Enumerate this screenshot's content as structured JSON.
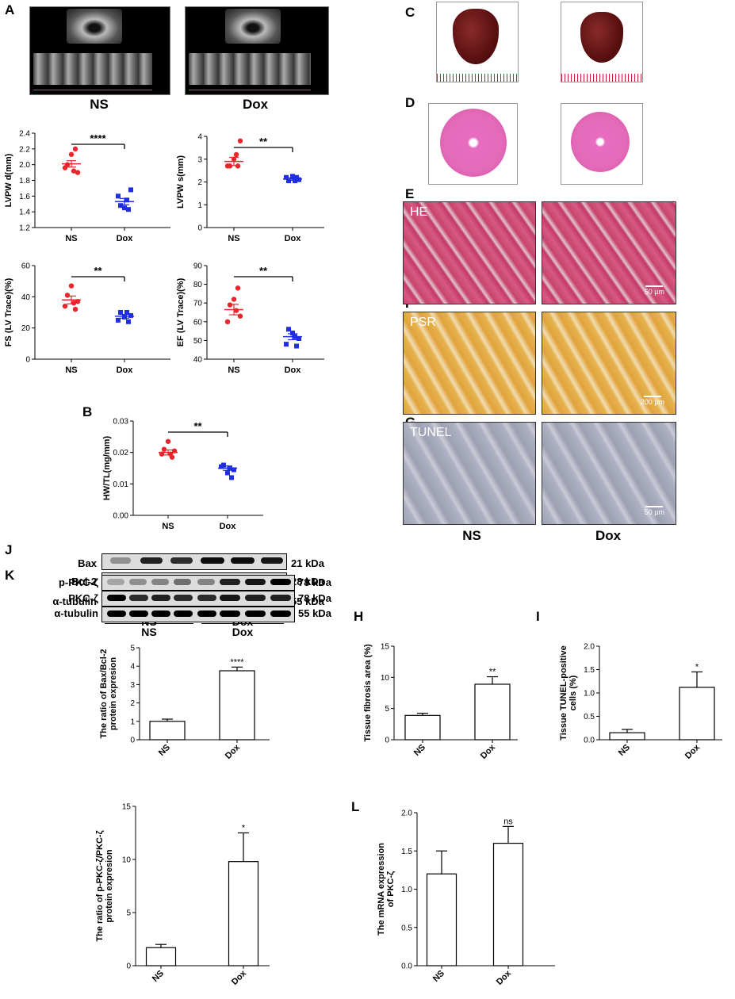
{
  "panels": {
    "A": "A",
    "B": "B",
    "C": "C",
    "D": "D",
    "E": "E",
    "F": "F",
    "G": "G",
    "H": "H",
    "I": "I",
    "J": "J",
    "K": "K",
    "L": "L"
  },
  "groups": {
    "ns": "NS",
    "dox": "Dox"
  },
  "histology": {
    "he": "HE",
    "psr": "PSR",
    "tunel": "TUNEL",
    "scale_50": "50 µm",
    "scale_200": "200 µm"
  },
  "blots": {
    "J": {
      "rows": [
        "Bax",
        "Bcl-2",
        "α-tubulin"
      ],
      "kda": [
        "21 kDa",
        "28 kDa",
        "55 kDa"
      ],
      "groups": [
        "NS",
        "Dox"
      ]
    },
    "K": {
      "rows": [
        "p-PKC-ζ",
        "PKC-ζ",
        "α-tubulin"
      ],
      "kda": [
        "78 kDa",
        "78 kDa",
        "55 kDa"
      ],
      "groups": [
        "NS",
        "Dox"
      ]
    }
  },
  "colors": {
    "ns": "#e8262b",
    "dox": "#1f2ee0"
  },
  "chart_data": [
    {
      "id": "A1",
      "type": "scatter",
      "categories": [
        "NS",
        "Dox"
      ],
      "ylabel": "LVPW d(mm)",
      "ylim": [
        1.2,
        2.4
      ],
      "yticks": [
        "1.2",
        "1.4",
        "1.6",
        "1.8",
        "2.0",
        "2.2",
        "2.4"
      ],
      "series": [
        {
          "values": [
            1.96,
            1.9,
            2.0,
            2.13,
            2.2,
            1.92
          ]
        },
        {
          "values": [
            1.6,
            1.68,
            1.48,
            1.45,
            1.43,
            1.55
          ]
        }
      ],
      "means": [
        2.01,
        1.53
      ],
      "sems": [
        0.04,
        0.04
      ],
      "sig": "****"
    },
    {
      "id": "A2",
      "type": "scatter",
      "categories": [
        "NS",
        "Dox"
      ],
      "ylabel": "LVPW s(mm)",
      "ylim": [
        0,
        4
      ],
      "yticks": [
        "0",
        "1",
        "2",
        "3",
        "4"
      ],
      "series": [
        {
          "values": [
            2.7,
            3.8,
            2.7,
            3.0,
            2.7,
            3.2
          ]
        },
        {
          "values": [
            2.2,
            2.1,
            2.05,
            2.25,
            2.2,
            2.05
          ]
        }
      ],
      "means": [
        2.9,
        2.13
      ],
      "sems": [
        0.18,
        0.06
      ],
      "sig": "**"
    },
    {
      "id": "A3",
      "type": "scatter",
      "categories": [
        "NS",
        "Dox"
      ],
      "ylabel": "FS (LV Trace)(%)",
      "ylim": [
        0,
        60
      ],
      "yticks": [
        "0",
        "20",
        "40",
        "60"
      ],
      "series": [
        {
          "values": [
            34,
            37,
            41,
            47,
            32,
            36
          ]
        },
        {
          "values": [
            25,
            28,
            30,
            27,
            24,
            30
          ]
        }
      ],
      "means": [
        38,
        27.5
      ],
      "sems": [
        2.5,
        1.2
      ],
      "sig": "**"
    },
    {
      "id": "A4",
      "type": "scatter",
      "categories": [
        "NS",
        "Dox"
      ],
      "ylabel": "EF (LV Trace)(%)",
      "ylim": [
        40,
        90
      ],
      "yticks": [
        "40",
        "50",
        "60",
        "70",
        "80",
        "90"
      ],
      "series": [
        {
          "values": [
            60,
            63,
            69,
            72,
            78,
            66
          ]
        },
        {
          "values": [
            48,
            51,
            56,
            54,
            47,
            52
          ]
        }
      ],
      "means": [
        66.5,
        52
      ],
      "sems": [
        2.8,
        1.6
      ],
      "sig": "**"
    },
    {
      "id": "B",
      "type": "scatter",
      "categories": [
        "NS",
        "Dox"
      ],
      "ylabel": "HW/TL(mg/mm)",
      "ylim": [
        0,
        0.03
      ],
      "yticks": [
        "0.00",
        "0.01",
        "0.02",
        "0.03"
      ],
      "series": [
        {
          "values": [
            0.0195,
            0.0205,
            0.021,
            0.0235,
            0.0185,
            0.0195
          ]
        },
        {
          "values": [
            0.0155,
            0.0145,
            0.016,
            0.0135,
            0.012,
            0.015
          ]
        }
      ],
      "means": [
        0.02,
        0.015
      ],
      "sems": [
        0.0008,
        0.0007
      ],
      "sig": "**"
    },
    {
      "id": "J",
      "type": "bar",
      "categories": [
        "NS",
        "Dox"
      ],
      "ylabel": "The ratio of Bax/Bcl-2 protein expresion",
      "ylim": [
        0,
        5
      ],
      "yticks": [
        "0",
        "1",
        "2",
        "3",
        "4",
        "5"
      ],
      "values": [
        1.0,
        3.75
      ],
      "errors": [
        0.12,
        0.2
      ],
      "sig": [
        "",
        "****"
      ]
    },
    {
      "id": "H",
      "type": "bar",
      "categories": [
        "NS",
        "Dox"
      ],
      "ylabel": "Tissue fibrosis area (%)",
      "ylim": [
        0,
        15
      ],
      "yticks": [
        "0",
        "5",
        "10",
        "15"
      ],
      "values": [
        3.9,
        8.9
      ],
      "errors": [
        0.35,
        1.2
      ],
      "sig": [
        "",
        "**"
      ]
    },
    {
      "id": "I",
      "type": "bar",
      "categories": [
        "NS",
        "Dox"
      ],
      "ylabel": "Tissue TUNEL-positive cells (%)",
      "ylim": [
        0,
        2.0
      ],
      "yticks": [
        "0.0",
        "0.5",
        "1.0",
        "1.5",
        "2.0"
      ],
      "values": [
        0.15,
        1.12
      ],
      "errors": [
        0.07,
        0.33
      ],
      "sig": [
        "",
        "*"
      ]
    },
    {
      "id": "K",
      "type": "bar",
      "categories": [
        "NS",
        "Dox"
      ],
      "ylabel": "The ratio of p-PKC-ζ/PKC-ζ protein expresion",
      "ylim": [
        0,
        15
      ],
      "yticks": [
        "0",
        "5",
        "10",
        "15"
      ],
      "values": [
        1.7,
        9.8
      ],
      "errors": [
        0.3,
        2.7
      ],
      "sig": [
        "",
        "*"
      ]
    },
    {
      "id": "L",
      "type": "bar",
      "categories": [
        "NS",
        "Dox"
      ],
      "ylabel": "The mRNA expression of PKC-ζ",
      "ylim": [
        0,
        2.0
      ],
      "yticks": [
        "0.0",
        "0.5",
        "1.0",
        "1.5",
        "2.0"
      ],
      "values": [
        1.2,
        1.6
      ],
      "errors": [
        0.3,
        0.22
      ],
      "sig": [
        "",
        "ns"
      ]
    }
  ]
}
